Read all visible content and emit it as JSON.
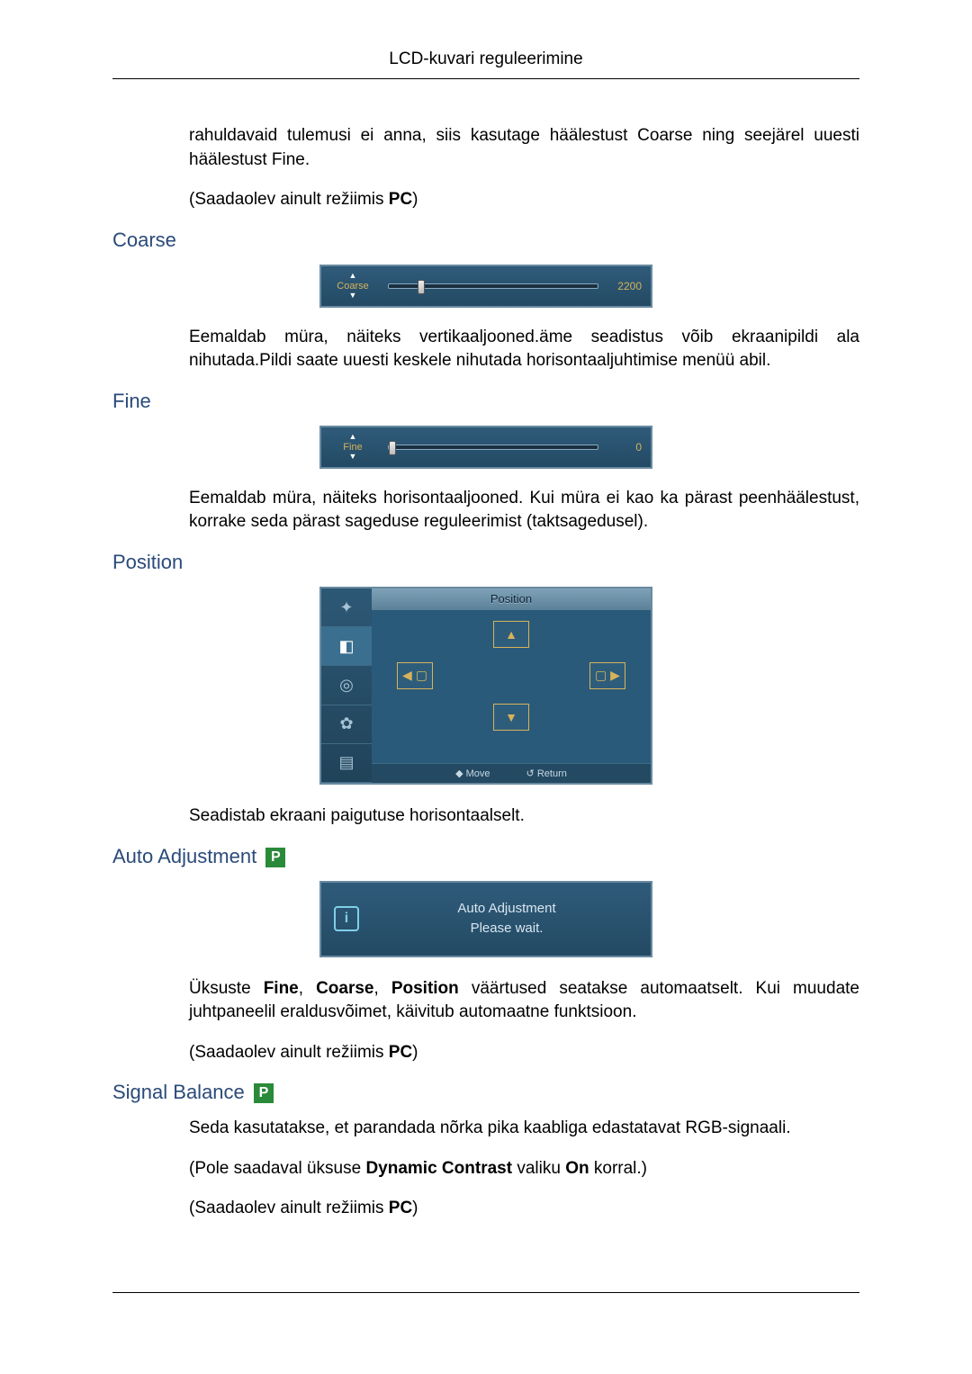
{
  "header": {
    "title": "LCD-kuvari reguleerimine"
  },
  "intro": {
    "p1": "rahuldavaid tulemusi ei anna, siis kasutage häälestust Coarse ning seejärel uuesti häälestust Fine.",
    "p2_prefix": "(Saadaolev ainult režiimis ",
    "p2_bold": "PC",
    "p2_suffix": ")"
  },
  "coarse": {
    "heading": "Coarse",
    "osd": {
      "label": "Coarse",
      "value": "2200",
      "thumb_percent": 14
    },
    "body": "Eemaldab müra, näiteks vertikaaljooned.äme seadistus võib ekraanipildi ala nihutada.Pildi saate uuesti keskele nihutada horisontaaljuhtimise menüü abil."
  },
  "fine": {
    "heading": "Fine",
    "osd": {
      "label": "Fine",
      "value": "0",
      "thumb_percent": 0
    },
    "body": "Eemaldab müra, näiteks horisontaaljooned. Kui müra ei kao ka pärast peenhäälestust, korrake seda pärast sageduse reguleerimist (taktsagedusel)."
  },
  "position": {
    "heading": "Position",
    "osd": {
      "title": "Position",
      "footer_move": "Move",
      "footer_return": "Return",
      "side_tabs": [
        "✦",
        "◧",
        "◎",
        "✿",
        "▤"
      ],
      "colors": {
        "bg": "#2a5a7a",
        "accent": "#d7b25a"
      }
    },
    "body": "Seadistab ekraani paigutuse horisontaalselt."
  },
  "auto": {
    "heading": "Auto Adjustment",
    "badge": "P",
    "osd": {
      "line1": "Auto Adjustment",
      "line2": "Please wait."
    },
    "p1_prefix": "Üksuste ",
    "p1_b1": "Fine",
    "p1_s1": ", ",
    "p1_b2": "Coarse",
    "p1_s2": ", ",
    "p1_b3": "Position",
    "p1_suffix": " väärtused seatakse automaatselt. Kui muudate juhtpaneelil eraldusvõimet, käivitub automaatne funktsioon.",
    "p2_prefix": "(Saadaolev ainult režiimis ",
    "p2_bold": "PC",
    "p2_suffix": ")"
  },
  "signal": {
    "heading": "Signal Balance",
    "badge": "P",
    "p1": "Seda kasutatakse, et parandada nõrka pika kaabliga edastatavat RGB-signaali.",
    "p2_prefix": "(Pole saadaval üksuse ",
    "p2_b1": "Dynamic Contrast",
    "p2_mid": " valiku ",
    "p2_b2": "On",
    "p2_suffix": " korral.)",
    "p3_prefix": "(Saadaolev ainult režiimis ",
    "p3_bold": "PC",
    "p3_suffix": ")"
  },
  "style": {
    "heading_color": "#2a4a7a",
    "badge_bg": "#2a8a3a",
    "osd_border": "#6a8aa0",
    "osd_accent": "#d7b25a"
  }
}
